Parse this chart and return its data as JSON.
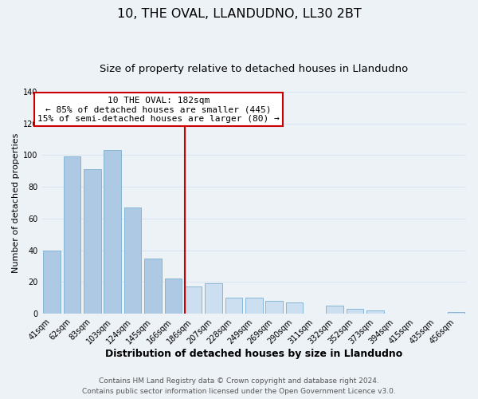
{
  "title": "10, THE OVAL, LLANDUDNO, LL30 2BT",
  "subtitle": "Size of property relative to detached houses in Llandudno",
  "xlabel": "Distribution of detached houses by size in Llandudno",
  "ylabel": "Number of detached properties",
  "bar_labels": [
    "41sqm",
    "62sqm",
    "83sqm",
    "103sqm",
    "124sqm",
    "145sqm",
    "166sqm",
    "186sqm",
    "207sqm",
    "228sqm",
    "249sqm",
    "269sqm",
    "290sqm",
    "311sqm",
    "332sqm",
    "352sqm",
    "373sqm",
    "394sqm",
    "415sqm",
    "435sqm",
    "456sqm"
  ],
  "bar_values": [
    40,
    99,
    91,
    103,
    67,
    35,
    22,
    17,
    19,
    10,
    10,
    8,
    7,
    0,
    5,
    3,
    2,
    0,
    0,
    0,
    1
  ],
  "bar_color_left": "#aec9e4",
  "bar_color_right": "#ccdff0",
  "highlight_index": 7,
  "highlight_line_color": "#cc0000",
  "ylim": [
    0,
    140
  ],
  "yticks": [
    0,
    20,
    40,
    60,
    80,
    100,
    120,
    140
  ],
  "annotation_title": "10 THE OVAL: 182sqm",
  "annotation_line1": "← 85% of detached houses are smaller (445)",
  "annotation_line2": "15% of semi-detached houses are larger (80) →",
  "annotation_box_color": "#ffffff",
  "annotation_box_edgecolor": "#cc0000",
  "footer_line1": "Contains HM Land Registry data © Crown copyright and database right 2024.",
  "footer_line2": "Contains public sector information licensed under the Open Government Licence v3.0.",
  "background_color": "#edf2f7",
  "grid_color": "#d8e4f0",
  "title_fontsize": 11.5,
  "subtitle_fontsize": 9.5,
  "xlabel_fontsize": 9,
  "ylabel_fontsize": 8,
  "tick_fontsize": 7,
  "footer_fontsize": 6.5,
  "annotation_fontsize": 8
}
